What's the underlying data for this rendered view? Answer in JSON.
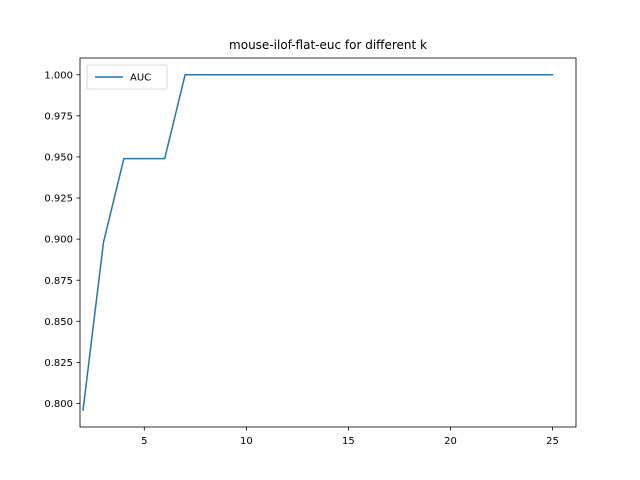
{
  "chart_data": {
    "type": "line",
    "title": "mouse-ilof-flat-euc for different k",
    "xlabel": "",
    "ylabel": "",
    "xlim": [
      1.85,
      26.15
    ],
    "ylim": [
      0.7857,
      1.0102
    ],
    "xticks": [
      5,
      10,
      15,
      20,
      25
    ],
    "xtick_labels": [
      "5",
      "10",
      "15",
      "20",
      "25"
    ],
    "yticks": [
      0.8,
      0.825,
      0.85,
      0.875,
      0.9,
      0.925,
      0.95,
      0.975,
      1.0
    ],
    "ytick_labels": [
      "0.800",
      "0.825",
      "0.850",
      "0.875",
      "0.900",
      "0.925",
      "0.950",
      "0.975",
      "1.000"
    ],
    "grid": false,
    "legend_position": "top-left",
    "series": [
      {
        "name": "AUC",
        "color": "#1f77b4",
        "x": [
          2,
          3,
          4,
          5,
          6,
          7,
          8,
          9,
          10,
          11,
          12,
          13,
          14,
          15,
          16,
          17,
          18,
          19,
          20,
          21,
          22,
          23,
          24,
          25
        ],
        "values": [
          0.796,
          0.898,
          0.949,
          0.949,
          0.949,
          1.0,
          1.0,
          1.0,
          1.0,
          1.0,
          1.0,
          1.0,
          1.0,
          1.0,
          1.0,
          1.0,
          1.0,
          1.0,
          1.0,
          1.0,
          1.0,
          1.0,
          1.0,
          1.0
        ]
      }
    ]
  }
}
